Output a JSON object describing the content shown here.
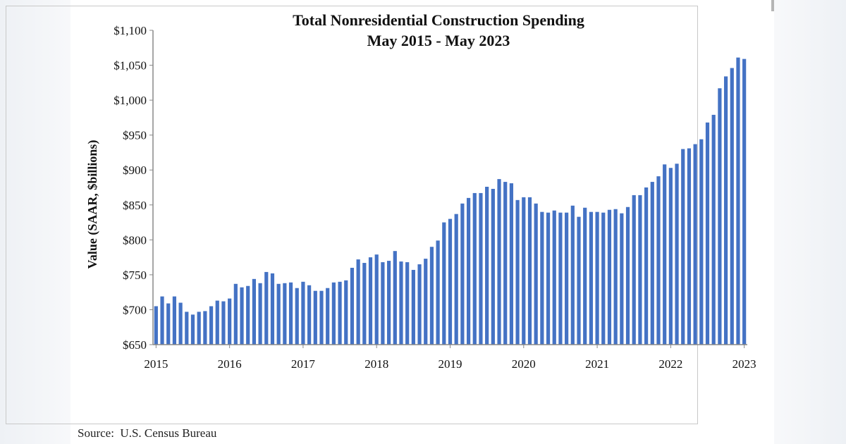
{
  "chart_data": {
    "type": "bar",
    "title": "Total Nonresidential Construction Spending",
    "subtitle": "May 2015 - May 2023",
    "ylabel": "Value (SAAR, $billions)",
    "xlabel": "",
    "ylim": [
      650,
      1100
    ],
    "yticks": [
      "$650",
      "$700",
      "$750",
      "$800",
      "$850",
      "$900",
      "$950",
      "$1,000",
      "$1,050",
      "$1,100"
    ],
    "xticks": [
      "2015",
      "2016",
      "2017",
      "2018",
      "2019",
      "2020",
      "2021",
      "2022",
      "2023"
    ],
    "grid": false,
    "color": "#4472c4",
    "values": [
      705,
      719,
      709,
      719,
      710,
      697,
      693,
      697,
      698,
      705,
      713,
      712,
      716,
      737,
      732,
      734,
      744,
      738,
      754,
      752,
      737,
      738,
      739,
      731,
      740,
      735,
      727,
      727,
      731,
      739,
      740,
      742,
      760,
      772,
      767,
      775,
      779,
      768,
      770,
      784,
      769,
      768,
      757,
      765,
      773,
      790,
      799,
      825,
      830,
      837,
      852,
      860,
      867,
      867,
      876,
      873,
      887,
      883,
      881,
      857,
      861,
      861,
      852,
      840,
      839,
      842,
      839,
      839,
      849,
      833,
      846,
      840,
      840,
      839,
      843,
      844,
      838,
      847,
      864,
      864,
      875,
      883,
      891,
      908,
      903,
      909,
      930,
      931,
      937,
      944,
      968,
      979,
      1017,
      1034,
      1046,
      1061,
      1059
    ]
  },
  "source": "Source:  U.S. Census Bureau"
}
